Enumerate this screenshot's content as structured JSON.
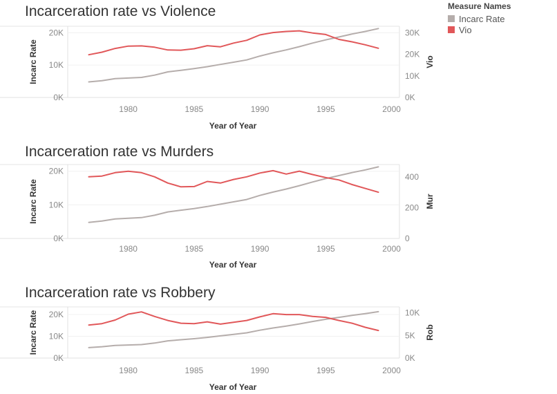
{
  "legend": {
    "title": "Measure Names",
    "items": [
      {
        "label": "Incarc Rate",
        "color": "#b5adab"
      },
      {
        "label": "Vio",
        "color": "#e15759"
      }
    ]
  },
  "chart_data": [
    {
      "type": "line",
      "title": "Incarceration rate vs Violence",
      "xlabel": "Year of Year",
      "ylabel_left": "Incarc Rate",
      "ylabel_right": "Vio",
      "x": [
        1977,
        1978,
        1979,
        1980,
        1981,
        1982,
        1983,
        1984,
        1985,
        1986,
        1987,
        1988,
        1989,
        1990,
        1991,
        1992,
        1993,
        1994,
        1995,
        1996,
        1997,
        1998,
        1999
      ],
      "x_ticks": [
        "1980",
        "1985",
        "1990",
        "1995",
        "2000"
      ],
      "x_tick_values": [
        1980,
        1985,
        1990,
        1995,
        2000
      ],
      "xlim": [
        1975.4,
        2000.6
      ],
      "left_axis": {
        "ylim": [
          0,
          22000
        ],
        "ticks": [
          0,
          10000,
          20000
        ],
        "tick_labels": [
          "0K",
          "10K",
          "20K"
        ]
      },
      "right_axis": {
        "ylim": [
          0,
          33000
        ],
        "ticks": [
          0,
          10000,
          20000,
          30000
        ],
        "tick_labels": [
          "0K",
          "10K",
          "20K",
          "30K"
        ]
      },
      "series": [
        {
          "name": "Incarc Rate",
          "axis": "left",
          "color": "#b5adab",
          "values": [
            4800,
            5200,
            5800,
            6000,
            6200,
            6900,
            7900,
            8400,
            8900,
            9500,
            10200,
            10900,
            11600,
            12800,
            13800,
            14700,
            15700,
            16800,
            17800,
            18700,
            19600,
            20400,
            21300
          ]
        },
        {
          "name": "Vio",
          "axis": "right",
          "color": "#e15759",
          "values": [
            19800,
            21000,
            22700,
            23800,
            23900,
            23300,
            22000,
            21900,
            22600,
            24000,
            23500,
            25200,
            26500,
            29000,
            30100,
            30600,
            30900,
            29900,
            29200,
            26900,
            25800,
            24400,
            22800
          ]
        }
      ]
    },
    {
      "type": "line",
      "title": "Incarceration rate vs Murders",
      "xlabel": "Year of Year",
      "ylabel_left": "Incarc Rate",
      "ylabel_right": "Mur",
      "x": [
        1977,
        1978,
        1979,
        1980,
        1981,
        1982,
        1983,
        1984,
        1985,
        1986,
        1987,
        1988,
        1989,
        1990,
        1991,
        1992,
        1993,
        1994,
        1995,
        1996,
        1997,
        1998,
        1999
      ],
      "x_ticks": [
        "1980",
        "1985",
        "1990",
        "1995",
        "2000"
      ],
      "x_tick_values": [
        1980,
        1985,
        1990,
        1995,
        2000
      ],
      "xlim": [
        1975.4,
        2000.6
      ],
      "left_axis": {
        "ylim": [
          0,
          22000
        ],
        "ticks": [
          0,
          10000,
          20000
        ],
        "tick_labels": [
          "0K",
          "10K",
          "20K"
        ]
      },
      "right_axis": {
        "ylim": [
          0,
          480
        ],
        "ticks": [
          0,
          200,
          400
        ],
        "tick_labels": [
          "0",
          "200",
          "400"
        ]
      },
      "series": [
        {
          "name": "Incarc Rate",
          "axis": "left",
          "color": "#b5adab",
          "values": [
            4800,
            5200,
            5800,
            6000,
            6200,
            6900,
            7900,
            8400,
            8900,
            9500,
            10200,
            10900,
            11600,
            12800,
            13800,
            14700,
            15700,
            16800,
            17800,
            18700,
            19600,
            20400,
            21300
          ]
        },
        {
          "name": "Mur",
          "axis": "right",
          "color": "#e15759",
          "values": [
            400,
            405,
            427,
            436,
            427,
            400,
            360,
            335,
            337,
            370,
            360,
            383,
            400,
            425,
            440,
            418,
            437,
            415,
            395,
            380,
            350,
            325,
            300
          ]
        }
      ]
    },
    {
      "type": "line",
      "title": "Incarceration rate vs Robbery",
      "xlabel": "Year of Year",
      "ylabel_left": "Incarc Rate",
      "ylabel_right": "Rob",
      "x": [
        1977,
        1978,
        1979,
        1980,
        1981,
        1982,
        1983,
        1984,
        1985,
        1986,
        1987,
        1988,
        1989,
        1990,
        1991,
        1992,
        1993,
        1994,
        1995,
        1996,
        1997,
        1998,
        1999
      ],
      "x_ticks": [
        "1980",
        "1985",
        "1990",
        "1995",
        "2000"
      ],
      "x_tick_values": [
        1980,
        1985,
        1990,
        1995,
        2000
      ],
      "xlim": [
        1975.4,
        2000.6
      ],
      "left_axis": {
        "ylim": [
          0,
          23500
        ],
        "ticks": [
          0,
          10000,
          20000
        ],
        "tick_labels": [
          "0K",
          "10K",
          "20K"
        ]
      },
      "right_axis": {
        "ylim": [
          0,
          11300
        ],
        "ticks": [
          0,
          5000,
          10000
        ],
        "tick_labels": [
          "0K",
          "5K",
          "10K"
        ]
      },
      "series": [
        {
          "name": "Incarc Rate",
          "axis": "left",
          "color": "#b5adab",
          "values": [
            4800,
            5200,
            5800,
            6000,
            6200,
            6900,
            7900,
            8400,
            8900,
            9500,
            10200,
            10900,
            11600,
            12800,
            13800,
            14700,
            15700,
            16800,
            17800,
            18700,
            19600,
            20400,
            21300
          ]
        },
        {
          "name": "Rob",
          "axis": "right",
          "color": "#e15759",
          "values": [
            7300,
            7600,
            8400,
            9700,
            10200,
            9200,
            8300,
            7700,
            7600,
            8000,
            7500,
            7900,
            8300,
            9100,
            9800,
            9600,
            9600,
            9200,
            9000,
            8300,
            7700,
            6800,
            6100
          ]
        }
      ]
    }
  ]
}
